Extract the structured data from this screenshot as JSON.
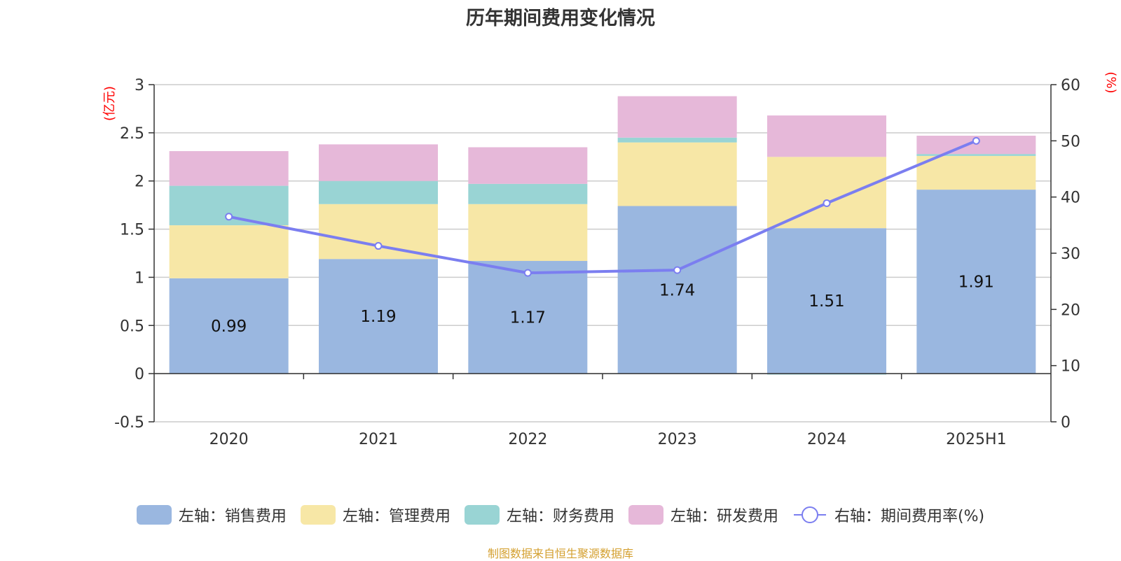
{
  "chart_data": {
    "type": "bar",
    "title": "历年期间费用变化情况",
    "categories": [
      "2020",
      "2021",
      "2022",
      "2023",
      "2024",
      "2025H1"
    ],
    "left_axis": {
      "unit": "(亿元)",
      "ylim": [
        -0.5,
        3
      ],
      "ticks": [
        "3",
        "2.5",
        "2",
        "1.5",
        "1",
        "0.5",
        "0",
        "-0.5"
      ]
    },
    "right_axis": {
      "unit": "(%)",
      "ylim": [
        0,
        60
      ],
      "ticks": [
        "60",
        "50",
        "40",
        "30",
        "20",
        "10",
        "0"
      ]
    },
    "series": [
      {
        "name": "左轴：销售费用",
        "type": "bar",
        "color": "#9ab7e0",
        "values": [
          0.99,
          1.19,
          1.17,
          1.74,
          1.51,
          1.91
        ],
        "labels": [
          "0.99",
          "1.19",
          "1.17",
          "1.74",
          "1.51",
          "1.91"
        ]
      },
      {
        "name": "左轴：管理费用",
        "type": "bar",
        "color": "#f7e7a6",
        "values": [
          0.55,
          0.57,
          0.59,
          0.66,
          0.74,
          0.35
        ]
      },
      {
        "name": "左轴：财务费用",
        "type": "bar",
        "color": "#99d4d4",
        "values": [
          0.41,
          0.24,
          0.21,
          0.05,
          -0.01,
          0.02
        ]
      },
      {
        "name": "左轴：研发费用",
        "type": "bar",
        "color": "#e6b8d9",
        "values": [
          0.36,
          0.38,
          0.38,
          0.43,
          0.43,
          0.19
        ]
      },
      {
        "name": "右轴：期间费用率(%)",
        "type": "line",
        "color": "#7b7ef0",
        "values": [
          36.5,
          31.3,
          26.5,
          27.0,
          38.9,
          50.0
        ]
      }
    ],
    "grid": true,
    "legend_position": "bottom"
  },
  "source_text": "制图数据来自恒生聚源数据库",
  "colors": {
    "source": "#d4a030",
    "unit": "#ff0000",
    "axis_text": "#333333"
  }
}
